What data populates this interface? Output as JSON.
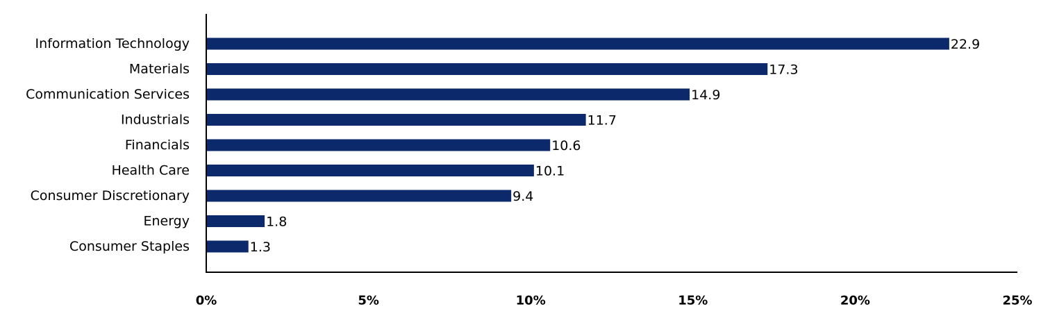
{
  "chart_data": {
    "type": "bar",
    "orientation": "horizontal",
    "title": "",
    "xlabel": "",
    "ylabel": "",
    "categories": [
      "Information Technology",
      "Materials",
      "Communication Services",
      "Industrials",
      "Financials",
      "Health Care",
      "Consumer Discretionary",
      "Energy",
      "Consumer Staples"
    ],
    "values": [
      22.9,
      17.3,
      14.9,
      11.7,
      10.6,
      10.1,
      9.4,
      1.8,
      1.3
    ],
    "value_labels": [
      "22.9",
      "17.3",
      "14.9",
      "11.7",
      "10.6",
      "10.1",
      "9.4",
      "1.8",
      "1.3"
    ],
    "xlim": [
      0,
      25
    ],
    "x_ticks": [
      0,
      5,
      10,
      15,
      20,
      25
    ],
    "x_tick_labels": [
      "0%",
      "5%",
      "10%",
      "15%",
      "20%",
      "25%"
    ],
    "grid": false,
    "legend": "none",
    "bar_color": "#0c2a6b"
  }
}
